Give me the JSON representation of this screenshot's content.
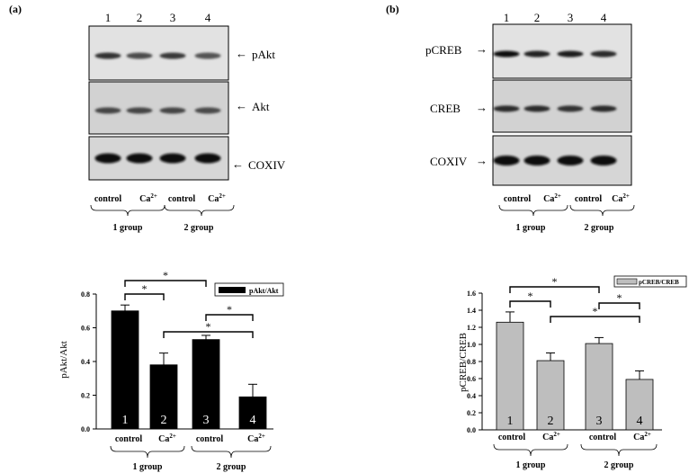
{
  "panels": [
    {
      "label": "(a)",
      "lanes": [
        "1",
        "2",
        "3",
        "4"
      ],
      "blots": [
        {
          "name": "pAkt",
          "intensity": [
            0.75,
            0.55,
            0.7,
            0.5
          ]
        },
        {
          "name": "Akt",
          "intensity": [
            0.6,
            0.6,
            0.6,
            0.58
          ]
        },
        {
          "name": "COXIV",
          "intensity": [
            1.0,
            1.0,
            1.0,
            1.0
          ]
        }
      ],
      "blot_conditions": [
        "control",
        "Ca2+",
        "control",
        "Ca2+"
      ],
      "blot_groups": [
        "1 group",
        "2 group"
      ]
    },
    {
      "label": "(b)",
      "lanes": [
        "1",
        "2",
        "3",
        "4"
      ],
      "blots": [
        {
          "name": "pCREB",
          "intensity": [
            1.0,
            0.85,
            0.9,
            0.8
          ]
        },
        {
          "name": "CREB",
          "intensity": [
            0.8,
            0.8,
            0.75,
            0.8
          ]
        },
        {
          "name": "COXIV",
          "intensity": [
            1.0,
            1.0,
            1.0,
            1.0
          ]
        }
      ],
      "blot_conditions": [
        "control",
        "Ca2+",
        "control",
        "Ca2+"
      ],
      "blot_groups": [
        "1 group",
        "2 group"
      ]
    }
  ],
  "chart_data": [
    {
      "type": "bar",
      "categories": [
        "control",
        "Ca2+",
        "control",
        "Ca2+"
      ],
      "groups": [
        "1 group",
        "2 group"
      ],
      "bar_labels": [
        "1",
        "2",
        "3",
        "4"
      ],
      "series": [
        {
          "name": "pAkt/Akt",
          "values": [
            0.7,
            0.38,
            0.53,
            0.19
          ],
          "errors": [
            0.035,
            0.07,
            0.025,
            0.075
          ],
          "color": "#000000"
        }
      ],
      "ylabel": "pAkt/Akt",
      "ylim": [
        0,
        0.8
      ],
      "yticks": [
        "0.0",
        "0.2",
        "0.4",
        "0.6",
        "0.8"
      ],
      "significance": [
        {
          "from": 0,
          "to": 2,
          "label": "*"
        },
        {
          "from": 0,
          "to": 1,
          "label": "*"
        },
        {
          "from": 1,
          "to": 3,
          "label": "*"
        },
        {
          "from": 2,
          "to": 3,
          "label": "*"
        }
      ],
      "legend": "top-right",
      "grid": false
    },
    {
      "type": "bar",
      "categories": [
        "control",
        "Ca2+",
        "control",
        "Ca2+"
      ],
      "groups": [
        "1 group",
        "2 group"
      ],
      "bar_labels": [
        "1",
        "2",
        "3",
        "4"
      ],
      "series": [
        {
          "name": "pCREB/CREB",
          "values": [
            1.26,
            0.81,
            1.01,
            0.59
          ],
          "errors": [
            0.12,
            0.09,
            0.07,
            0.1
          ],
          "color": "#bebebe"
        }
      ],
      "ylabel": "pCREB/CREB",
      "ylim": [
        0,
        1.6
      ],
      "yticks": [
        "0.0",
        "0.2",
        "0.4",
        "0.6",
        "0.8",
        "1.0",
        "1.2",
        "1.4",
        "1.6"
      ],
      "significance": [
        {
          "from": 0,
          "to": 2,
          "label": "*"
        },
        {
          "from": 0,
          "to": 1,
          "label": "*"
        },
        {
          "from": 1,
          "to": 3,
          "label": "*"
        },
        {
          "from": 2,
          "to": 3,
          "label": "*"
        }
      ],
      "legend": "top-right",
      "grid": false
    }
  ]
}
